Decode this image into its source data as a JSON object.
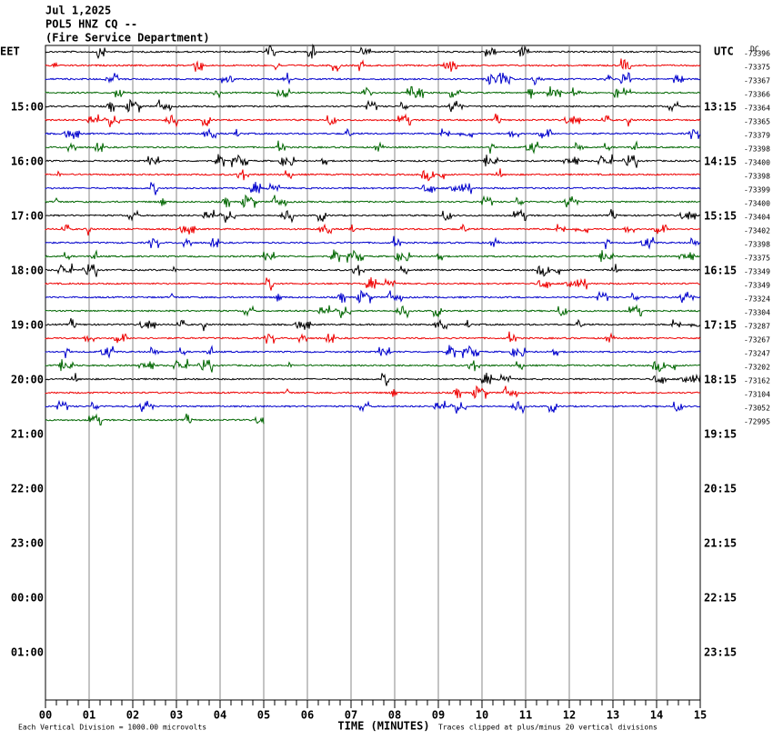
{
  "header": {
    "date": "Jul 1,2025",
    "station": "POL5 HNZ CQ --",
    "agency": "(Fire Service Department)"
  },
  "left_axis": {
    "title": "EET",
    "labels": [
      "15:00",
      "16:00",
      "17:00",
      "18:00",
      "19:00",
      "20:00",
      "21:00",
      "22:00",
      "23:00",
      "00:00",
      "01:00"
    ]
  },
  "right_axis": {
    "title": "UTC",
    "labels": [
      "13:15",
      "14:15",
      "15:15",
      "16:15",
      "17:15",
      "18:15",
      "19:15",
      "20:15",
      "21:15",
      "22:15",
      "23:15"
    ]
  },
  "filter": "DC",
  "trace_labels": [
    "-73396",
    "-73375",
    "-73367",
    "-73366",
    "-73364",
    "-73365",
    "-73379",
    "-73398",
    "-73400",
    "-73398",
    "-73399",
    "-73400",
    "-73404",
    "-73402",
    "-73398",
    "-73375",
    "-73349",
    "-73349",
    "-73324",
    "-73304",
    "-73287",
    "-73267",
    "-73247",
    "-73202",
    "-73162",
    "-73104",
    "-73052",
    "-72995"
  ],
  "x_axis": {
    "labels": [
      "00",
      "01",
      "02",
      "03",
      "04",
      "05",
      "06",
      "07",
      "08",
      "09",
      "10",
      "11",
      "12",
      "13",
      "14",
      "15"
    ],
    "title": "TIME (MINUTES)"
  },
  "footer": {
    "scale": "Each Vertical Division = 1000.00 microvolts",
    "clip": "Traces clipped at plus/minus 20 vertical divisions"
  }
}
